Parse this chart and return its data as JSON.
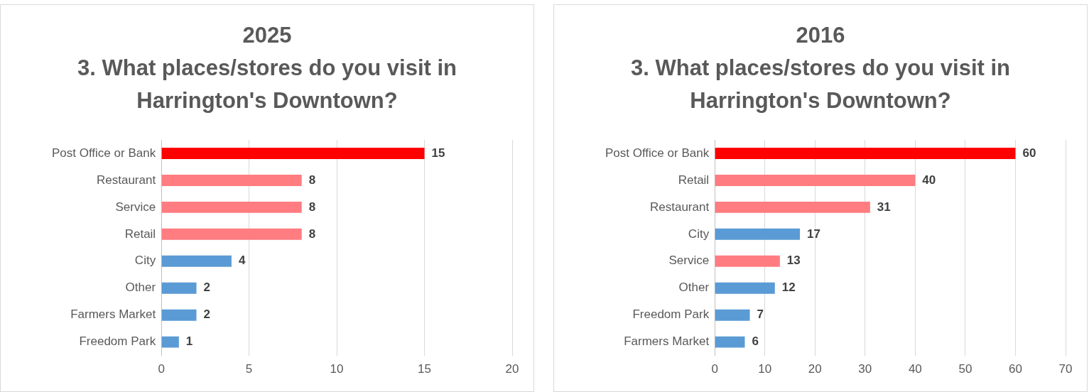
{
  "chart_data": [
    {
      "type": "bar",
      "orientation": "horizontal",
      "title": "2025",
      "subtitle": "3. What places/stores do you visit in Harrington's Downtown?",
      "categories": [
        "Post Office or Bank",
        "Restaurant",
        "Service",
        "Retail",
        "City",
        "Other",
        "Farmers Market",
        "Freedom Park"
      ],
      "values": [
        15,
        8,
        8,
        8,
        4,
        2,
        2,
        1
      ],
      "colors": [
        "#ff0000",
        "#ff7c80",
        "#ff7c80",
        "#ff7c80",
        "#5b9bd5",
        "#5b9bd5",
        "#5b9bd5",
        "#5b9bd5"
      ],
      "xlim": [
        0,
        20
      ],
      "xticks": [
        0,
        5,
        10,
        15,
        20
      ],
      "grid": "x",
      "data_labels": true,
      "legend": false
    },
    {
      "type": "bar",
      "orientation": "horizontal",
      "title": "2016",
      "subtitle": "3. What places/stores do you visit in Harrington's Downtown?",
      "categories": [
        "Post Office or Bank",
        "Retail",
        "Restaurant",
        "City",
        "Service",
        "Other",
        "Freedom Park",
        "Farmers Market"
      ],
      "values": [
        60,
        40,
        31,
        17,
        13,
        12,
        7,
        6
      ],
      "colors": [
        "#ff0000",
        "#ff7c80",
        "#ff7c80",
        "#5b9bd5",
        "#ff7c80",
        "#5b9bd5",
        "#5b9bd5",
        "#5b9bd5"
      ],
      "xlim": [
        0,
        70
      ],
      "xticks": [
        0,
        10,
        20,
        30,
        40,
        50,
        60,
        70
      ],
      "grid": "x",
      "data_labels": true,
      "legend": false
    }
  ]
}
